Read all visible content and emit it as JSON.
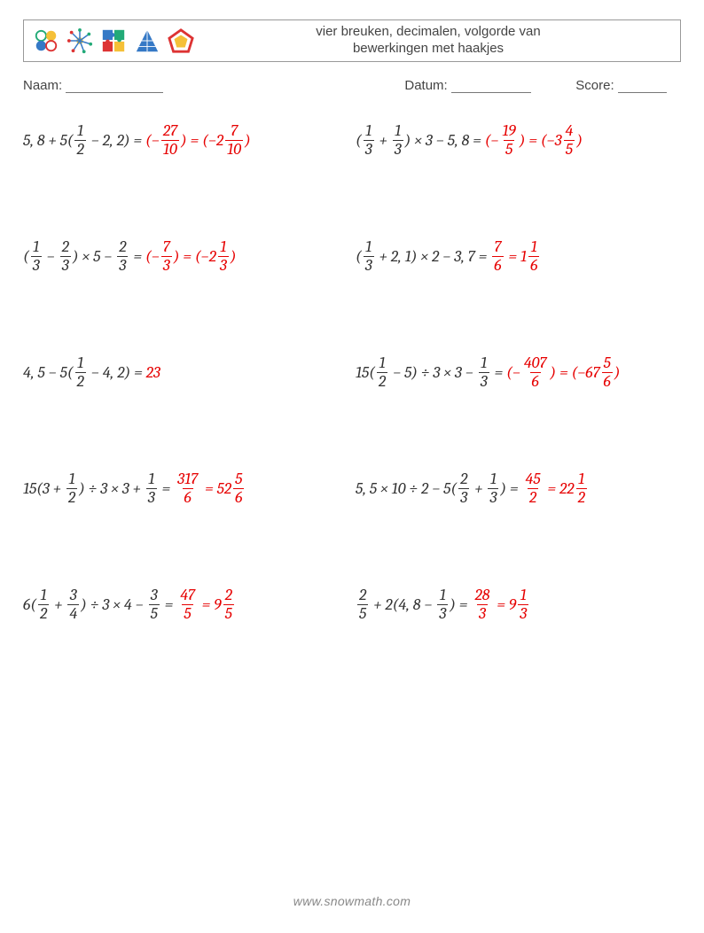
{
  "header": {
    "title_line1": "vier breuken, decimalen, volgorde van",
    "title_line2": "bewerkingen met haakjes"
  },
  "meta": {
    "name_label": "Naam:",
    "date_label": "Datum:",
    "score_label": "Score:"
  },
  "footer": {
    "text": "www.snowmath.com"
  },
  "colors": {
    "answer": "#e60000",
    "text": "#333333",
    "border": "#999999",
    "footer": "#888888",
    "background": "#ffffff"
  },
  "problems": [
    {
      "left": {
        "expr_parts": [
          {
            "t": "text",
            "v": "5, 8 + 5("
          },
          {
            "t": "frac",
            "n": "1",
            "d": "2"
          },
          {
            "t": "text",
            "v": " − 2, 2) = "
          }
        ],
        "ans_parts": [
          {
            "t": "text",
            "v": "(−"
          },
          {
            "t": "frac",
            "n": "27",
            "d": "10"
          },
          {
            "t": "text",
            "v": ") = (−2"
          },
          {
            "t": "frac",
            "n": "7",
            "d": "10"
          },
          {
            "t": "text",
            "v": ")"
          }
        ]
      },
      "right": {
        "expr_parts": [
          {
            "t": "text",
            "v": "("
          },
          {
            "t": "frac",
            "n": "1",
            "d": "3"
          },
          {
            "t": "text",
            "v": " + "
          },
          {
            "t": "frac",
            "n": "1",
            "d": "3"
          },
          {
            "t": "text",
            "v": ") × 3 − 5, 8 = "
          }
        ],
        "ans_parts": [
          {
            "t": "text",
            "v": "(−"
          },
          {
            "t": "frac",
            "n": "19",
            "d": "5"
          },
          {
            "t": "text",
            "v": ") = (−3"
          },
          {
            "t": "frac",
            "n": "4",
            "d": "5"
          },
          {
            "t": "text",
            "v": ")"
          }
        ]
      }
    },
    {
      "left": {
        "expr_parts": [
          {
            "t": "text",
            "v": "("
          },
          {
            "t": "frac",
            "n": "1",
            "d": "3"
          },
          {
            "t": "text",
            "v": " − "
          },
          {
            "t": "frac",
            "n": "2",
            "d": "3"
          },
          {
            "t": "text",
            "v": ") × 5 − "
          },
          {
            "t": "frac",
            "n": "2",
            "d": "3"
          },
          {
            "t": "text",
            "v": " = "
          }
        ],
        "ans_parts": [
          {
            "t": "text",
            "v": "(−"
          },
          {
            "t": "frac",
            "n": "7",
            "d": "3"
          },
          {
            "t": "text",
            "v": ") = (−2"
          },
          {
            "t": "frac",
            "n": "1",
            "d": "3"
          },
          {
            "t": "text",
            "v": ")"
          }
        ]
      },
      "right": {
        "expr_parts": [
          {
            "t": "text",
            "v": "("
          },
          {
            "t": "frac",
            "n": "1",
            "d": "3"
          },
          {
            "t": "text",
            "v": " + 2, 1) × 2 − 3, 7 = "
          }
        ],
        "ans_parts": [
          {
            "t": "frac",
            "n": "7",
            "d": "6"
          },
          {
            "t": "text",
            "v": " = 1"
          },
          {
            "t": "frac",
            "n": "1",
            "d": "6"
          }
        ]
      }
    },
    {
      "left": {
        "expr_parts": [
          {
            "t": "text",
            "v": "4, 5 − 5("
          },
          {
            "t": "frac",
            "n": "1",
            "d": "2"
          },
          {
            "t": "text",
            "v": " − 4, 2) = "
          }
        ],
        "ans_parts": [
          {
            "t": "text",
            "v": "23"
          }
        ]
      },
      "right": {
        "expr_parts": [
          {
            "t": "text",
            "v": "15("
          },
          {
            "t": "frac",
            "n": "1",
            "d": "2"
          },
          {
            "t": "text",
            "v": " − 5) ÷ 3 × 3 − "
          },
          {
            "t": "frac",
            "n": "1",
            "d": "3"
          },
          {
            "t": "text",
            "v": " = "
          }
        ],
        "ans_parts": [
          {
            "t": "text",
            "v": "(−"
          },
          {
            "t": "frac",
            "n": "407",
            "d": "6"
          },
          {
            "t": "text",
            "v": ") = (−67"
          },
          {
            "t": "frac",
            "n": "5",
            "d": "6"
          },
          {
            "t": "text",
            "v": ")"
          }
        ]
      }
    },
    {
      "left": {
        "expr_parts": [
          {
            "t": "text",
            "v": "15(3 + "
          },
          {
            "t": "frac",
            "n": "1",
            "d": "2"
          },
          {
            "t": "text",
            "v": ") ÷ 3 × 3 + "
          },
          {
            "t": "frac",
            "n": "1",
            "d": "3"
          },
          {
            "t": "text",
            "v": " = "
          }
        ],
        "ans_parts": [
          {
            "t": "frac",
            "n": "317",
            "d": "6"
          },
          {
            "t": "text",
            "v": " = 52"
          },
          {
            "t": "frac",
            "n": "5",
            "d": "6"
          }
        ]
      },
      "right": {
        "expr_parts": [
          {
            "t": "text",
            "v": "5, 5 × 10 ÷ 2 − 5("
          },
          {
            "t": "frac",
            "n": "2",
            "d": "3"
          },
          {
            "t": "text",
            "v": " + "
          },
          {
            "t": "frac",
            "n": "1",
            "d": "3"
          },
          {
            "t": "text",
            "v": ") = "
          }
        ],
        "ans_parts": [
          {
            "t": "frac",
            "n": "45",
            "d": "2"
          },
          {
            "t": "text",
            "v": " = 22"
          },
          {
            "t": "frac",
            "n": "1",
            "d": "2"
          }
        ]
      }
    },
    {
      "left": {
        "expr_parts": [
          {
            "t": "text",
            "v": "6("
          },
          {
            "t": "frac",
            "n": "1",
            "d": "2"
          },
          {
            "t": "text",
            "v": " + "
          },
          {
            "t": "frac",
            "n": "3",
            "d": "4"
          },
          {
            "t": "text",
            "v": ") ÷ 3 × 4 − "
          },
          {
            "t": "frac",
            "n": "3",
            "d": "5"
          },
          {
            "t": "text",
            "v": " = "
          }
        ],
        "ans_parts": [
          {
            "t": "frac",
            "n": "47",
            "d": "5"
          },
          {
            "t": "text",
            "v": " = 9"
          },
          {
            "t": "frac",
            "n": "2",
            "d": "5"
          }
        ]
      },
      "right": {
        "expr_parts": [
          {
            "t": "frac",
            "n": "2",
            "d": "5"
          },
          {
            "t": "text",
            "v": " + 2(4, 8 − "
          },
          {
            "t": "frac",
            "n": "1",
            "d": "3"
          },
          {
            "t": "text",
            "v": ") = "
          }
        ],
        "ans_parts": [
          {
            "t": "frac",
            "n": "28",
            "d": "3"
          },
          {
            "t": "text",
            "v": " = 9"
          },
          {
            "t": "frac",
            "n": "1",
            "d": "3"
          }
        ]
      }
    }
  ]
}
